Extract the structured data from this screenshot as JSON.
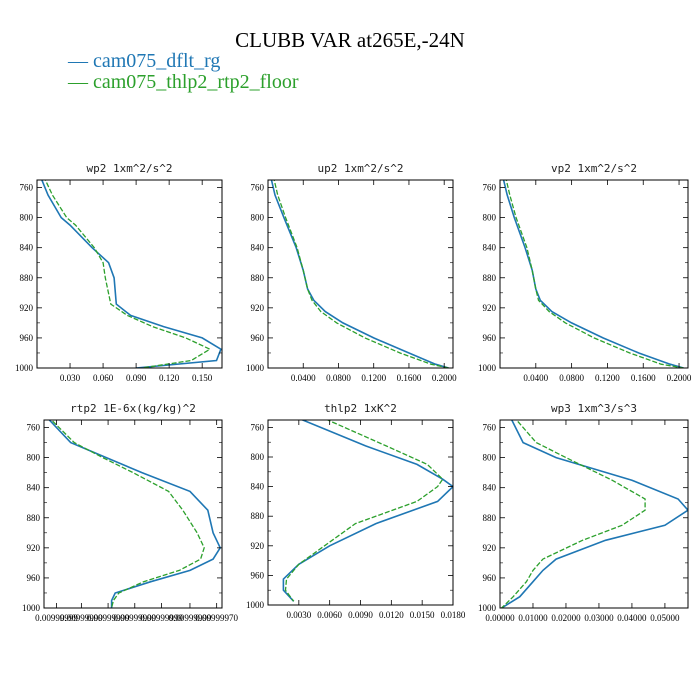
{
  "title": "CLUBB VAR at265E,-24N",
  "legend": [
    {
      "label": "— cam075_dflt_rg",
      "color": "#1f77b4"
    },
    {
      "label": "— cam075_thlp2_rtp2_floor",
      "color": "#2ca02c"
    }
  ],
  "colors": {
    "series1": "#1f77b4",
    "series2": "#2ca02c"
  },
  "chart_data": [
    {
      "type": "line",
      "title": "wp2  1xm^2/s^2",
      "xlim": [
        0.0,
        0.168
      ],
      "ylim": [
        1000,
        750
      ],
      "xticks": [
        0.03,
        0.06,
        0.09,
        0.12,
        0.15
      ],
      "xticklabels": [
        "0.030",
        "0.060",
        "0.090",
        "0.120",
        "0.150"
      ],
      "yticks": [
        760,
        800,
        840,
        880,
        920,
        960,
        1000
      ],
      "series": [
        {
          "name": "cam075_dflt_rg",
          "y": [
            745,
            770,
            800,
            810,
            840,
            860,
            880,
            915,
            930,
            945,
            960,
            975,
            990,
            1000
          ],
          "x": [
            0.003,
            0.01,
            0.022,
            0.03,
            0.05,
            0.065,
            0.07,
            0.072,
            0.085,
            0.115,
            0.15,
            0.167,
            0.163,
            0.09
          ]
        },
        {
          "name": "cam075_thlp2_rtp2_floor",
          "y": [
            745,
            770,
            800,
            810,
            840,
            860,
            880,
            915,
            930,
            945,
            960,
            975,
            990,
            1000
          ],
          "x": [
            0.006,
            0.014,
            0.027,
            0.035,
            0.052,
            0.06,
            0.062,
            0.067,
            0.082,
            0.105,
            0.135,
            0.157,
            0.14,
            0.095
          ]
        }
      ]
    },
    {
      "type": "line",
      "title": "up2  1xm^2/s^2",
      "xlim": [
        0.0,
        0.21
      ],
      "ylim": [
        1000,
        750
      ],
      "xticks": [
        0.04,
        0.08,
        0.12,
        0.16,
        0.2
      ],
      "xticklabels": [
        "0.0400",
        "0.0800",
        "0.1200",
        "0.1600",
        "0.2000"
      ],
      "yticks": [
        760,
        800,
        840,
        880,
        920,
        960,
        1000
      ],
      "series": [
        {
          "name": "cam075_dflt_rg",
          "y": [
            745,
            770,
            800,
            840,
            870,
            895,
            910,
            925,
            940,
            960,
            980,
            995,
            1000
          ],
          "x": [
            0.003,
            0.008,
            0.018,
            0.032,
            0.04,
            0.045,
            0.052,
            0.065,
            0.085,
            0.12,
            0.16,
            0.19,
            0.205
          ]
        },
        {
          "name": "cam075_thlp2_rtp2_floor",
          "y": [
            745,
            770,
            800,
            840,
            870,
            895,
            910,
            925,
            940,
            960,
            980,
            995,
            1000
          ],
          "x": [
            0.006,
            0.011,
            0.02,
            0.033,
            0.04,
            0.045,
            0.05,
            0.06,
            0.078,
            0.11,
            0.15,
            0.185,
            0.205
          ]
        }
      ]
    },
    {
      "type": "line",
      "title": "vp2  1xm^2/s^2",
      "xlim": [
        0.0,
        0.21
      ],
      "ylim": [
        1000,
        750
      ],
      "xticks": [
        0.04,
        0.08,
        0.12,
        0.16,
        0.2
      ],
      "xticklabels": [
        "0.0400",
        "0.0800",
        "0.1200",
        "0.1600",
        "0.2000"
      ],
      "yticks": [
        760,
        800,
        840,
        880,
        920,
        960,
        1000
      ],
      "series": [
        {
          "name": "cam075_dflt_rg",
          "y": [
            745,
            770,
            800,
            840,
            870,
            895,
            910,
            925,
            940,
            960,
            980,
            995,
            1000
          ],
          "x": [
            0.003,
            0.008,
            0.016,
            0.028,
            0.036,
            0.04,
            0.045,
            0.058,
            0.08,
            0.115,
            0.155,
            0.19,
            0.205
          ]
        },
        {
          "name": "cam075_thlp2_rtp2_floor",
          "y": [
            745,
            770,
            800,
            840,
            870,
            895,
            910,
            925,
            940,
            960,
            980,
            995,
            1000
          ],
          "x": [
            0.006,
            0.011,
            0.018,
            0.03,
            0.036,
            0.04,
            0.043,
            0.055,
            0.073,
            0.105,
            0.145,
            0.18,
            0.205
          ]
        }
      ]
    },
    {
      "type": "line",
      "title": "rtp2  1E-6x(kg/kg)^2",
      "xlim": [
        0.0,
        1.0
      ],
      "ylim": [
        1000,
        750
      ],
      "xticks": [
        0.07,
        0.21,
        0.36,
        0.51,
        0.66,
        0.82,
        0.97
      ],
      "xticklabels": [
        "0.00999999",
        "0.00999999",
        "0.00999999",
        "0.00999999",
        "0.00999999",
        "0.00999999",
        "0.00999970"
      ],
      "yticks": [
        760,
        800,
        840,
        880,
        920,
        960,
        1000
      ],
      "series": [
        {
          "name": "cam075_dflt_rg",
          "y": [
            745,
            780,
            800,
            820,
            845,
            870,
            900,
            920,
            935,
            950,
            965,
            980,
            990,
            1000
          ],
          "x": [
            0.01,
            0.15,
            0.35,
            0.55,
            0.82,
            0.92,
            0.95,
            0.99,
            0.95,
            0.82,
            0.6,
            0.4,
            0.38,
            0.38
          ]
        },
        {
          "name": "cam075_thlp2_rtp2_floor",
          "y": [
            745,
            780,
            800,
            820,
            845,
            870,
            900,
            920,
            935,
            950,
            965,
            980,
            990,
            1000
          ],
          "x": [
            0.02,
            0.17,
            0.33,
            0.5,
            0.7,
            0.78,
            0.86,
            0.9,
            0.88,
            0.76,
            0.56,
            0.42,
            0.39,
            0.38
          ]
        }
      ]
    },
    {
      "type": "line",
      "title": "thlp2  1xK^2",
      "xlim": [
        0.0,
        0.018
      ],
      "ylim": [
        1000,
        750
      ],
      "xticks": [
        0.003,
        0.006,
        0.009,
        0.012,
        0.015,
        0.018
      ],
      "xticklabels": [
        "0.0030",
        "0.0060",
        "0.0090",
        "0.0120",
        "0.0150",
        "0.0180"
      ],
      "yticks": [
        760,
        800,
        840,
        880,
        920,
        960,
        1000
      ],
      "series": [
        {
          "name": "cam075_dflt_rg",
          "y": [
            745,
            785,
            810,
            830,
            840,
            860,
            890,
            920,
            945,
            965,
            980,
            995
          ],
          "x": [
            0.0025,
            0.0095,
            0.0145,
            0.017,
            0.018,
            0.0165,
            0.0105,
            0.006,
            0.003,
            0.0015,
            0.0015,
            0.0025
          ]
        },
        {
          "name": "cam075_thlp2_rtp2_floor",
          "y": [
            745,
            785,
            810,
            830,
            840,
            860,
            890,
            920,
            945,
            965,
            980,
            995
          ],
          "x": [
            0.005,
            0.0115,
            0.0155,
            0.017,
            0.0165,
            0.0145,
            0.0085,
            0.0055,
            0.003,
            0.0018,
            0.0017,
            0.0025
          ]
        }
      ]
    },
    {
      "type": "line",
      "title": "wp3  1xm^3/s^3",
      "xlim": [
        0.0,
        0.057
      ],
      "ylim": [
        1000,
        750
      ],
      "xticks": [
        0.0,
        0.01,
        0.02,
        0.03,
        0.04,
        0.05
      ],
      "xticklabels": [
        "0.00000",
        "0.01000",
        "0.02000",
        "0.03000",
        "0.04000",
        "0.05000"
      ],
      "yticks": [
        760,
        800,
        840,
        880,
        920,
        960,
        1000
      ],
      "series": [
        {
          "name": "cam075_dflt_rg",
          "y": [
            745,
            780,
            800,
            830,
            855,
            870,
            890,
            910,
            935,
            950,
            965,
            985,
            1000
          ],
          "x": [
            0.003,
            0.007,
            0.017,
            0.04,
            0.054,
            0.057,
            0.05,
            0.032,
            0.017,
            0.013,
            0.01,
            0.006,
            0.0005
          ]
        },
        {
          "name": "cam075_thlp2_rtp2_floor",
          "y": [
            745,
            780,
            800,
            830,
            855,
            870,
            890,
            910,
            935,
            950,
            965,
            985,
            1000
          ],
          "x": [
            0.004,
            0.011,
            0.02,
            0.034,
            0.044,
            0.044,
            0.037,
            0.025,
            0.013,
            0.01,
            0.008,
            0.004,
            0.0005
          ]
        }
      ]
    }
  ]
}
